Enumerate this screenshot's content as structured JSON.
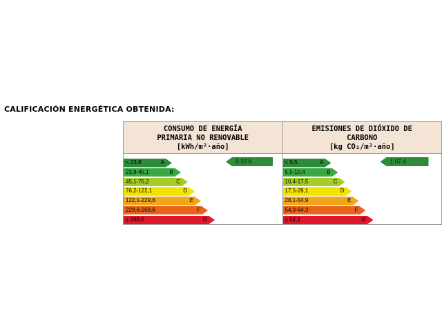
{
  "page": {
    "title": "CALIFICACIÓN ENERGÉTICA OBTENIDA:"
  },
  "panels": [
    {
      "title_lines": [
        "CONSUMO DE ENERGÍA",
        "PRIMARIA NO RENOVABLE",
        "[kWh/m²·año]"
      ],
      "rating": {
        "value": "8.32",
        "letter": "A",
        "text": "8.32 A"
      },
      "classes": [
        {
          "range": "< 23,8",
          "letter": "A",
          "color": "#2e8b3a"
        },
        {
          "range": "23,8-45,1",
          "letter": "B",
          "color": "#3aa845"
        },
        {
          "range": "45,1-76,2",
          "letter": "C",
          "color": "#a6cc2a"
        },
        {
          "range": "76,2-122,1",
          "letter": "D",
          "color": "#f2e400"
        },
        {
          "range": "122,1-229,6",
          "letter": "E",
          "color": "#f0a618"
        },
        {
          "range": "229,6-268,6",
          "letter": "F",
          "color": "#e8631c"
        },
        {
          "range": "≥ 268,6",
          "letter": "G",
          "color": "#e0162b"
        }
      ]
    },
    {
      "title_lines": [
        "EMISIONES DE DIÓXIDO DE",
        "CARBONO",
        "[kg CO₂/m²·año]"
      ],
      "rating": {
        "value": "1.07",
        "letter": "A",
        "text": "1.07 A"
      },
      "classes": [
        {
          "range": "< 5,5",
          "letter": "A",
          "color": "#2e8b3a"
        },
        {
          "range": "5,5-10,4",
          "letter": "B",
          "color": "#3aa845"
        },
        {
          "range": "10,4-17,5",
          "letter": "C",
          "color": "#a6cc2a"
        },
        {
          "range": "17,5-28,1",
          "letter": "D",
          "color": "#f2e400"
        },
        {
          "range": "28,1-54,9",
          "letter": "E",
          "color": "#f0a618"
        },
        {
          "range": "54,9-64,3",
          "letter": "F",
          "color": "#e8631c"
        },
        {
          "range": "≥ 64,3",
          "letter": "G",
          "color": "#e0162b"
        }
      ]
    }
  ]
}
